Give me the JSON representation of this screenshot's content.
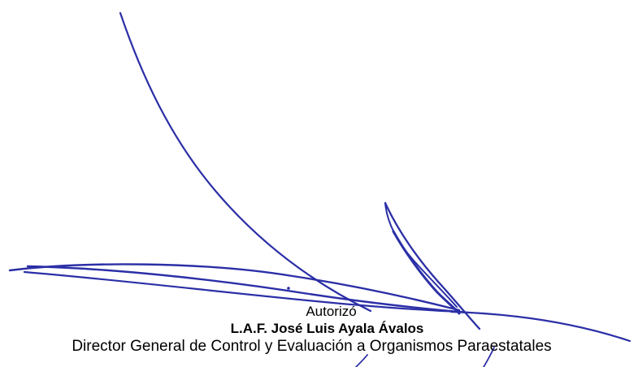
{
  "signature": {
    "label": "Autorizó",
    "name": "L.A.F.  José Luis Ayala Ávalos",
    "title": "Director General de Control y Evaluación a Organismos  Paraestatales",
    "ink_color": "#2b2fa6"
  }
}
